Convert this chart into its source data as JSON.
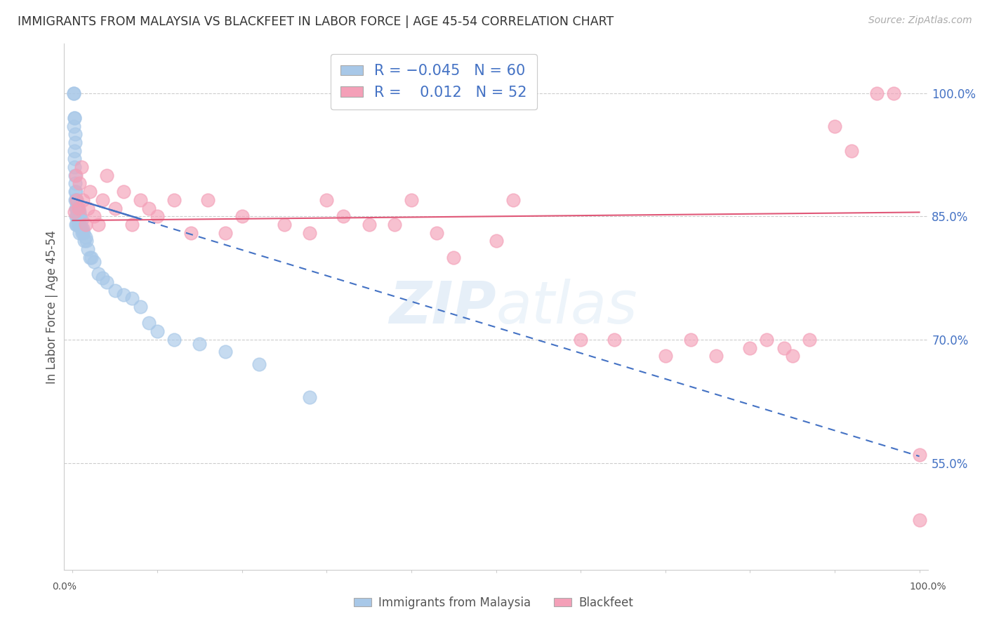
{
  "title": "IMMIGRANTS FROM MALAYSIA VS BLACKFEET IN LABOR FORCE | AGE 45-54 CORRELATION CHART",
  "source": "Source: ZipAtlas.com",
  "ylabel": "In Labor Force | Age 45-54",
  "xlim": [
    0.0,
    1.0
  ],
  "ylim": [
    0.42,
    1.06
  ],
  "yticks": [
    0.55,
    0.7,
    0.85,
    1.0
  ],
  "ytick_labels": [
    "55.0%",
    "70.0%",
    "85.0%",
    "100.0%"
  ],
  "malaysia_color": "#a8c8e8",
  "blackfeet_color": "#f4a0b8",
  "malaysia_line_color": "#4472c4",
  "blackfeet_line_color": "#e05878",
  "watermark": "ZIPatlas",
  "background_color": "#ffffff",
  "malaysia_x": [
    0.001,
    0.001,
    0.001,
    0.002,
    0.002,
    0.002,
    0.002,
    0.002,
    0.003,
    0.003,
    0.003,
    0.003,
    0.003,
    0.003,
    0.004,
    0.004,
    0.004,
    0.004,
    0.004,
    0.005,
    0.005,
    0.005,
    0.005,
    0.006,
    0.006,
    0.006,
    0.007,
    0.007,
    0.007,
    0.008,
    0.008,
    0.008,
    0.009,
    0.009,
    0.01,
    0.01,
    0.011,
    0.012,
    0.013,
    0.014,
    0.015,
    0.016,
    0.018,
    0.02,
    0.022,
    0.025,
    0.03,
    0.035,
    0.04,
    0.05,
    0.06,
    0.07,
    0.08,
    0.09,
    0.1,
    0.12,
    0.15,
    0.18,
    0.22,
    0.28
  ],
  "malaysia_y": [
    1.0,
    1.0,
    0.96,
    0.97,
    0.97,
    0.93,
    0.92,
    0.91,
    0.95,
    0.94,
    0.9,
    0.89,
    0.88,
    0.87,
    0.88,
    0.87,
    0.86,
    0.85,
    0.84,
    0.87,
    0.86,
    0.85,
    0.84,
    0.86,
    0.85,
    0.84,
    0.855,
    0.85,
    0.84,
    0.855,
    0.85,
    0.83,
    0.85,
    0.84,
    0.845,
    0.835,
    0.83,
    0.835,
    0.83,
    0.82,
    0.825,
    0.82,
    0.81,
    0.8,
    0.8,
    0.795,
    0.78,
    0.775,
    0.77,
    0.76,
    0.755,
    0.75,
    0.74,
    0.72,
    0.71,
    0.7,
    0.695,
    0.685,
    0.67,
    0.63
  ],
  "blackfeet_x": [
    0.002,
    0.004,
    0.005,
    0.007,
    0.008,
    0.01,
    0.012,
    0.015,
    0.018,
    0.02,
    0.025,
    0.03,
    0.035,
    0.04,
    0.05,
    0.06,
    0.07,
    0.08,
    0.09,
    0.1,
    0.12,
    0.14,
    0.16,
    0.18,
    0.2,
    0.25,
    0.28,
    0.3,
    0.32,
    0.35,
    0.38,
    0.4,
    0.43,
    0.45,
    0.5,
    0.52,
    0.6,
    0.64,
    0.7,
    0.73,
    0.76,
    0.8,
    0.82,
    0.84,
    0.85,
    0.87,
    0.9,
    0.92,
    0.95,
    0.97,
    1.0,
    1.0
  ],
  "blackfeet_y": [
    0.855,
    0.9,
    0.87,
    0.86,
    0.89,
    0.91,
    0.87,
    0.84,
    0.86,
    0.88,
    0.85,
    0.84,
    0.87,
    0.9,
    0.86,
    0.88,
    0.84,
    0.87,
    0.86,
    0.85,
    0.87,
    0.83,
    0.87,
    0.83,
    0.85,
    0.84,
    0.83,
    0.87,
    0.85,
    0.84,
    0.84,
    0.87,
    0.83,
    0.8,
    0.82,
    0.87,
    0.7,
    0.7,
    0.68,
    0.7,
    0.68,
    0.69,
    0.7,
    0.69,
    0.68,
    0.7,
    0.96,
    0.93,
    1.0,
    1.0,
    0.48,
    0.56
  ],
  "malaysia_trend_start_y": 0.872,
  "malaysia_trend_end_y": 0.558,
  "blackfeet_trend_start_y": 0.845,
  "blackfeet_trend_end_y": 0.855
}
